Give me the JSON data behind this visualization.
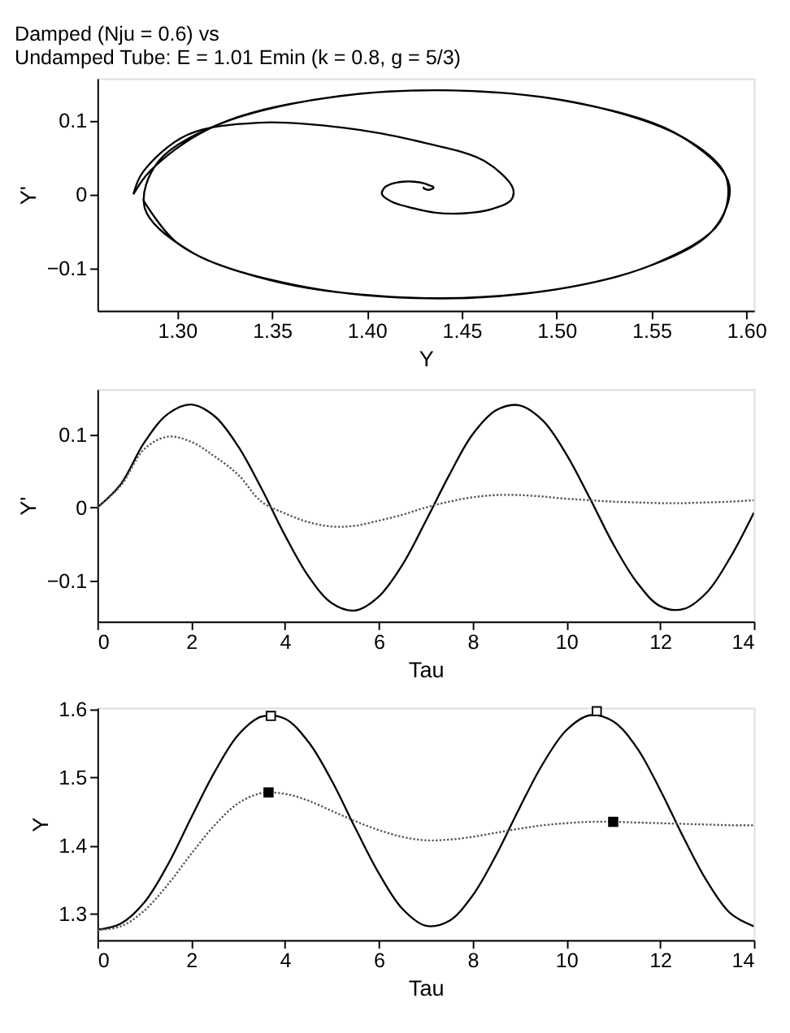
{
  "chart_data": [
    {
      "type": "line",
      "title": "Damped (Nju = 0.6) vs\nUndamped Tube: E = 1.01 Emin (k = 0.8, g = 5/3)",
      "xlabel": "Y",
      "ylabel": "Y'",
      "xlim": [
        1.258,
        1.604
      ],
      "ylim": [
        -0.158,
        0.157
      ],
      "xticks": [
        {
          "value": 1.3,
          "label": "1.30"
        },
        1.35,
        {
          "value": 1.4,
          "label": "1.40"
        },
        1.45,
        {
          "value": 1.5,
          "label": "1.50"
        },
        1.55,
        {
          "value": 1.6,
          "label": "1.60"
        }
      ],
      "yticks": [
        -0.1,
        0,
        0.1
      ],
      "grid": false,
      "marker": "none",
      "series": [
        {
          "color": "#000000",
          "line_style": "solid",
          "x": [
            1.277,
            1.286,
            1.317,
            1.372,
            1.441,
            1.508,
            1.562,
            1.589,
            1.586,
            1.552,
            1.495,
            1.426,
            1.36,
            1.308,
            1.283,
            1.29,
            1.327,
            1.386,
            1.455,
            1.52,
            1.569,
            1.591,
            1.582,
            1.544,
            1.482,
            1.412,
            1.348,
            1.301,
            1.282
          ],
          "values": [
            0,
            0.032,
            0.089,
            0.128,
            0.141,
            0.125,
            0.084,
            0.026,
            -0.038,
            -0.094,
            -0.131,
            -0.141,
            -0.122,
            -0.079,
            -0.019,
            0.044,
            0.1,
            0.133,
            0.14,
            0.119,
            0.073,
            0.013,
            -0.05,
            -0.102,
            -0.135,
            -0.139,
            -0.116,
            -0.068,
            -0.007
          ]
        },
        {
          "color": "#000000",
          "line_style": "solid",
          "x": [
            1.277,
            1.282,
            1.305,
            1.343,
            1.388,
            1.43,
            1.462,
            1.477,
            1.476,
            1.466,
            1.451,
            1.436,
            1.423,
            1.413,
            1.408,
            1.409,
            1.413,
            1.419,
            1.425,
            1.43,
            1.433,
            1.435,
            1.435,
            1.434,
            1.433,
            1.432,
            1.431,
            1.43,
            1.43
          ],
          "values": [
            0,
            0.03,
            0.08,
            0.097,
            0.09,
            0.07,
            0.045,
            0.008,
            -0.008,
            -0.02,
            -0.026,
            -0.025,
            -0.018,
            -0.01,
            0,
            0.008,
            0.014,
            0.017,
            0.017,
            0.015,
            0.012,
            0.01,
            0.008,
            0.007,
            0.006,
            0.006,
            0.007,
            0.008,
            0.01
          ]
        }
      ]
    },
    {
      "type": "line",
      "xlabel": "Tau",
      "ylabel": "Y'",
      "xlim": [
        0,
        14
      ],
      "ylim": [
        -0.156,
        0.162
      ],
      "xticks": [
        0,
        2,
        4,
        6,
        8,
        10,
        12,
        14
      ],
      "yticks": [
        -0.1,
        0,
        0.1
      ],
      "grid": false,
      "marker": "none",
      "x": [
        0,
        0.5,
        1,
        1.5,
        2,
        2.5,
        3,
        3.5,
        4,
        4.5,
        5,
        5.5,
        6,
        6.5,
        7,
        7.5,
        8,
        8.5,
        9,
        9.5,
        10,
        10.5,
        11,
        11.5,
        12,
        12.5,
        13,
        13.5,
        14
      ],
      "series": [
        {
          "color": "#000000",
          "line_style": "solid",
          "values": [
            0,
            0.032,
            0.089,
            0.128,
            0.141,
            0.125,
            0.084,
            0.026,
            -0.038,
            -0.094,
            -0.131,
            -0.141,
            -0.122,
            -0.079,
            -0.019,
            0.044,
            0.1,
            0.133,
            0.14,
            0.119,
            0.073,
            0.013,
            -0.05,
            -0.102,
            -0.135,
            -0.139,
            -0.116,
            -0.068,
            -0.007
          ]
        },
        {
          "color": "#555555",
          "line_style": "dotted",
          "values": [
            0,
            0.03,
            0.08,
            0.097,
            0.09,
            0.07,
            0.045,
            0.008,
            -0.008,
            -0.02,
            -0.026,
            -0.025,
            -0.018,
            -0.01,
            0,
            0.008,
            0.014,
            0.017,
            0.017,
            0.015,
            0.012,
            0.01,
            0.008,
            0.007,
            0.006,
            0.006,
            0.007,
            0.008,
            0.01
          ]
        }
      ]
    },
    {
      "type": "line",
      "xlabel": "Tau",
      "ylabel": "Y",
      "xlim": [
        0,
        14
      ],
      "ylim": [
        1.262,
        1.602
      ],
      "xticks": [
        0,
        2,
        4,
        6,
        8,
        10,
        12,
        14
      ],
      "yticks": [
        1.3,
        1.4,
        1.5,
        1.6
      ],
      "grid": false,
      "marker": "none",
      "x": [
        0,
        0.5,
        1,
        1.5,
        2,
        2.5,
        3,
        3.5,
        4,
        4.5,
        5,
        5.5,
        6,
        6.5,
        7,
        7.5,
        8,
        8.5,
        9,
        9.5,
        10,
        10.5,
        11,
        11.5,
        12,
        12.5,
        13,
        13.5,
        14
      ],
      "series": [
        {
          "color": "#000000",
          "line_style": "solid",
          "values": [
            1.277,
            1.286,
            1.317,
            1.372,
            1.441,
            1.508,
            1.562,
            1.589,
            1.586,
            1.552,
            1.495,
            1.426,
            1.36,
            1.308,
            1.283,
            1.29,
            1.327,
            1.386,
            1.455,
            1.52,
            1.569,
            1.591,
            1.582,
            1.544,
            1.482,
            1.412,
            1.348,
            1.301,
            1.282
          ]
        },
        {
          "color": "#555555",
          "line_style": "dotted",
          "values": [
            1.277,
            1.282,
            1.305,
            1.343,
            1.388,
            1.43,
            1.462,
            1.477,
            1.476,
            1.466,
            1.451,
            1.436,
            1.423,
            1.413,
            1.408,
            1.409,
            1.413,
            1.419,
            1.425,
            1.43,
            1.433,
            1.435,
            1.435,
            1.434,
            1.433,
            1.432,
            1.431,
            1.43,
            1.43
          ]
        },
        {
          "type": "scatter",
          "marker": "square",
          "color": "#ffffff",
          "x": [
            3.7,
            10.65
          ],
          "values": [
            1.59,
            1.597
          ]
        },
        {
          "type": "scatter",
          "marker": "square",
          "color": "#000000",
          "x": [
            3.65,
            11.0
          ],
          "values": [
            1.478,
            1.435
          ]
        }
      ]
    }
  ]
}
